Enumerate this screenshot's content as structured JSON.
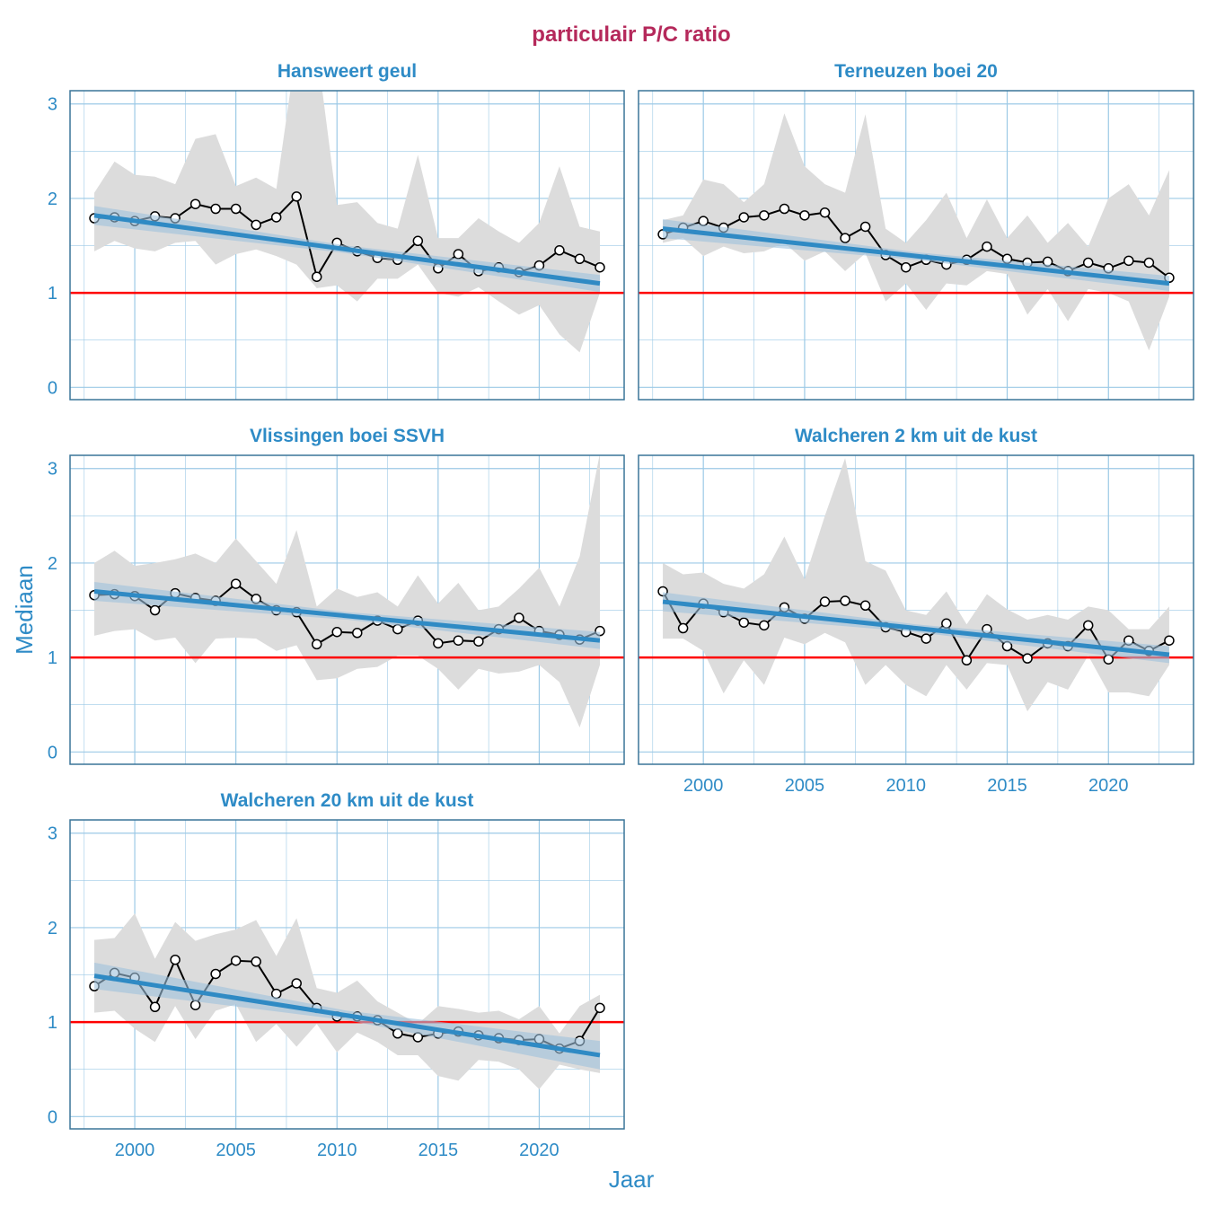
{
  "chart_data": {
    "type": "line",
    "title": "particulair P/C ratio",
    "xlabel": "Jaar",
    "ylabel": "Mediaan",
    "xlim": [
      1996.8,
      2024.2
    ],
    "ylim": [
      -0.13,
      3.14
    ],
    "x_ticks": [
      2000,
      2005,
      2010,
      2015,
      2020
    ],
    "y_ticks": [
      0,
      1,
      2,
      3
    ],
    "grid": true,
    "reference_line": {
      "y": 1,
      "color": "#ff0000"
    },
    "colors": {
      "title": "#b5295b",
      "strip_text": "#2e8bc6",
      "points_line": "#000000",
      "range_band": "#dcdcdc",
      "trend": "#2f8ac4",
      "trend_ci": "#9fc2dc",
      "grid": "#9cc9e6",
      "border": "#3a7599"
    },
    "x": [
      1998,
      1999,
      2000,
      2001,
      2002,
      2003,
      2004,
      2005,
      2006,
      2007,
      2008,
      2009,
      2010,
      2011,
      2012,
      2013,
      2014,
      2015,
      2016,
      2017,
      2018,
      2019,
      2020,
      2021,
      2022,
      2023
    ],
    "panels": [
      {
        "name": "Hansweert geul",
        "median": [
          1.79,
          1.8,
          1.76,
          1.81,
          1.79,
          1.94,
          1.89,
          1.89,
          1.72,
          1.8,
          2.02,
          1.17,
          1.53,
          1.44,
          1.37,
          1.35,
          1.55,
          1.26,
          1.41,
          1.23,
          1.27,
          1.22,
          1.29,
          1.45,
          1.36,
          1.27
        ],
        "upper": [
          2.06,
          2.39,
          2.25,
          2.23,
          2.15,
          2.63,
          2.68,
          2.13,
          2.22,
          2.1,
          3.6,
          3.6,
          1.93,
          1.96,
          1.74,
          1.68,
          2.46,
          1.58,
          1.58,
          1.79,
          1.65,
          1.53,
          1.74,
          2.34,
          1.7,
          1.65
        ],
        "lower": [
          1.44,
          1.55,
          1.47,
          1.44,
          1.53,
          1.55,
          1.3,
          1.41,
          1.46,
          1.39,
          1.3,
          1.05,
          1.08,
          0.91,
          1.15,
          1.15,
          1.3,
          1.0,
          0.96,
          1.06,
          0.91,
          0.77,
          0.87,
          0.56,
          0.37,
          1.0
        ],
        "trend": {
          "x": [
            1998,
            2010.5,
            2023
          ],
          "fit": [
            1.82,
            1.46,
            1.1
          ],
          "ci_lower": [
            1.72,
            1.42,
            1.01
          ],
          "ci_upper": [
            1.92,
            1.5,
            1.19
          ]
        }
      },
      {
        "name": "Terneuzen boei 20",
        "median": [
          1.62,
          1.69,
          1.76,
          1.69,
          1.8,
          1.82,
          1.89,
          1.82,
          1.85,
          1.58,
          1.7,
          1.4,
          1.27,
          1.35,
          1.3,
          1.35,
          1.49,
          1.36,
          1.32,
          1.33,
          1.23,
          1.32,
          1.26,
          1.34,
          1.32,
          1.16
        ],
        "upper": [
          1.77,
          1.82,
          2.2,
          2.15,
          1.96,
          2.15,
          2.9,
          2.34,
          2.15,
          2.06,
          2.89,
          1.68,
          1.53,
          1.77,
          2.06,
          1.58,
          1.99,
          1.58,
          1.82,
          1.53,
          1.74,
          1.49,
          2.0,
          2.15,
          1.82,
          2.3
        ],
        "lower": [
          1.53,
          1.58,
          1.39,
          1.49,
          1.42,
          1.44,
          1.53,
          1.34,
          1.44,
          1.23,
          1.42,
          0.91,
          1.1,
          0.82,
          1.1,
          1.08,
          1.23,
          1.2,
          0.77,
          1.04,
          0.7,
          1.04,
          1.0,
          0.91,
          0.39,
          0.96
        ],
        "trend": {
          "x": [
            1998,
            2010.5,
            2023
          ],
          "fit": [
            1.68,
            1.39,
            1.1
          ],
          "ci_lower": [
            1.58,
            1.35,
            1.02
          ],
          "ci_upper": [
            1.78,
            1.43,
            1.18
          ]
        }
      },
      {
        "name": "Vlissingen boei SSVH",
        "median": [
          1.66,
          1.67,
          1.65,
          1.5,
          1.68,
          1.63,
          1.6,
          1.78,
          1.62,
          1.5,
          1.48,
          1.14,
          1.27,
          1.26,
          1.39,
          1.3,
          1.39,
          1.15,
          1.18,
          1.17,
          1.3,
          1.42,
          1.28,
          1.24,
          1.19,
          1.28
        ],
        "upper": [
          2.0,
          2.13,
          1.97,
          2.0,
          2.04,
          2.1,
          2.0,
          2.26,
          2.02,
          1.78,
          2.35,
          1.54,
          1.73,
          1.64,
          1.69,
          1.54,
          1.87,
          1.57,
          1.79,
          1.5,
          1.54,
          1.73,
          1.95,
          1.54,
          2.07,
          3.16
        ],
        "lower": [
          1.23,
          1.28,
          1.3,
          1.18,
          1.21,
          0.94,
          1.2,
          1.21,
          1.2,
          1.07,
          1.13,
          0.76,
          0.78,
          0.88,
          0.9,
          1.02,
          1.02,
          0.88,
          0.66,
          0.88,
          0.83,
          0.85,
          0.92,
          0.74,
          0.26,
          0.92
        ],
        "trend": {
          "x": [
            1998,
            2010.5,
            2023
          ],
          "fit": [
            1.7,
            1.44,
            1.18
          ],
          "ci_lower": [
            1.6,
            1.4,
            1.09
          ],
          "ci_upper": [
            1.8,
            1.48,
            1.27
          ]
        }
      },
      {
        "name": "Walcheren 2 km uit de kust",
        "median": [
          1.7,
          1.31,
          1.57,
          1.48,
          1.37,
          1.34,
          1.53,
          1.41,
          1.59,
          1.6,
          1.55,
          1.32,
          1.27,
          1.2,
          1.36,
          0.97,
          1.3,
          1.12,
          0.99,
          1.15,
          1.12,
          1.34,
          0.98,
          1.18,
          1.07,
          1.18
        ],
        "upper": [
          2.0,
          1.88,
          1.9,
          1.78,
          1.73,
          1.88,
          2.28,
          1.83,
          2.5,
          3.11,
          2.02,
          1.92,
          1.5,
          1.45,
          1.7,
          1.35,
          1.67,
          1.51,
          1.4,
          1.45,
          1.4,
          1.54,
          1.5,
          1.3,
          1.3,
          1.54
        ],
        "lower": [
          1.2,
          1.2,
          1.07,
          0.62,
          0.97,
          0.71,
          1.21,
          1.14,
          1.26,
          1.16,
          0.71,
          0.92,
          0.71,
          0.59,
          0.92,
          0.66,
          0.94,
          0.92,
          0.43,
          0.74,
          0.66,
          1.02,
          0.63,
          0.63,
          0.59,
          0.92
        ],
        "trend": {
          "x": [
            1998,
            2010.5,
            2023
          ],
          "fit": [
            1.59,
            1.31,
            1.03
          ],
          "ci_lower": [
            1.49,
            1.27,
            0.94
          ],
          "ci_upper": [
            1.69,
            1.35,
            1.12
          ]
        }
      },
      {
        "name": "Walcheren 20 km uit de kust",
        "median": [
          1.38,
          1.52,
          1.47,
          1.16,
          1.66,
          1.18,
          1.51,
          1.65,
          1.64,
          1.3,
          1.41,
          1.15,
          1.06,
          1.06,
          1.02,
          0.88,
          0.84,
          0.88,
          0.9,
          0.86,
          0.83,
          0.81,
          0.82,
          0.72,
          0.8,
          1.15
        ],
        "upper": [
          1.87,
          1.89,
          2.15,
          1.67,
          2.06,
          1.86,
          1.93,
          1.98,
          2.08,
          1.7,
          2.1,
          1.36,
          1.31,
          1.44,
          1.22,
          1.1,
          0.98,
          1.17,
          1.14,
          1.1,
          1.12,
          1.03,
          1.17,
          0.88,
          1.17,
          1.29
        ],
        "lower": [
          1.1,
          1.12,
          0.93,
          0.79,
          1.17,
          0.82,
          1.12,
          1.19,
          0.79,
          0.98,
          0.74,
          0.98,
          0.68,
          0.89,
          0.79,
          0.65,
          0.65,
          0.43,
          0.38,
          0.6,
          0.58,
          0.5,
          0.29,
          0.55,
          0.5,
          0.46
        ],
        "trend": {
          "x": [
            1998,
            2010.5,
            2023
          ],
          "fit": [
            1.49,
            1.07,
            0.65
          ],
          "ci_lower": [
            1.35,
            1.02,
            0.5
          ],
          "ci_upper": [
            1.63,
            1.12,
            0.8
          ]
        }
      }
    ]
  }
}
